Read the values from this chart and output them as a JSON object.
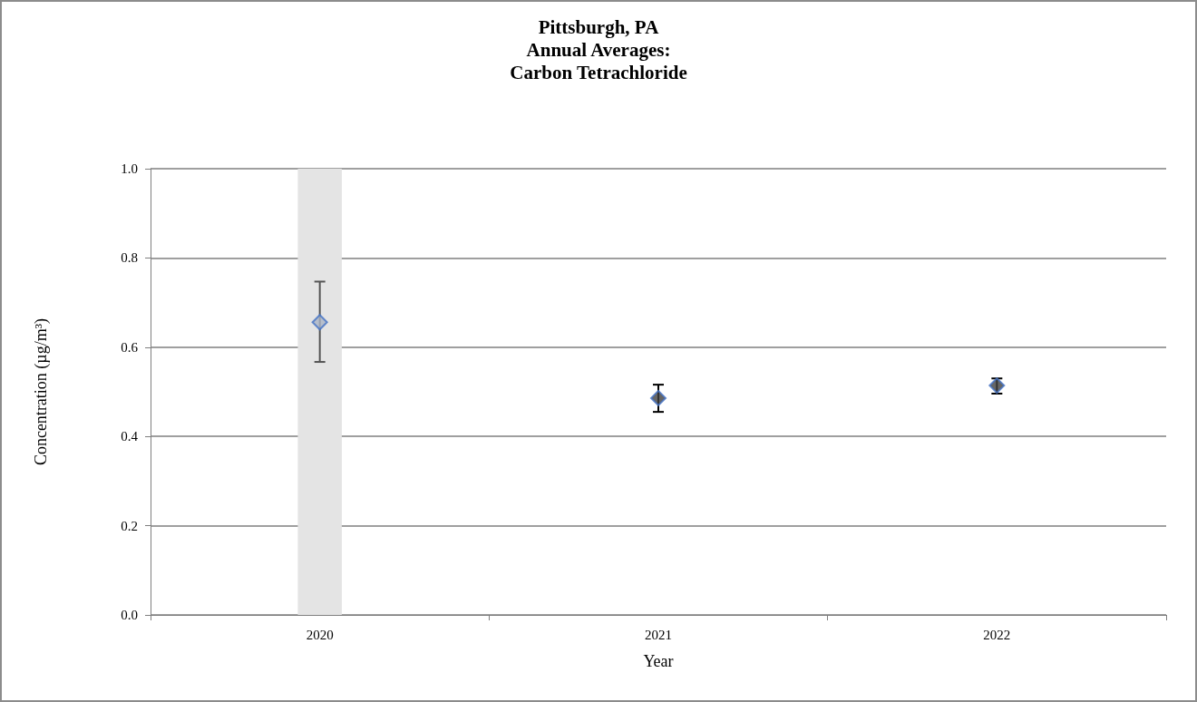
{
  "chart_data": {
    "type": "scatter",
    "title": "Pittsburgh, PA\nAnnual Averages:\nCarbon Tetrachloride",
    "xlabel": "Year",
    "ylabel": "Concentration (µg/m³)",
    "categories": [
      "2020",
      "2021",
      "2022"
    ],
    "values": [
      0.656,
      0.486,
      0.514
    ],
    "colors": [
      "#aab4c6",
      "#404040",
      "#404040"
    ],
    "errors": [
      [
        0.567,
        0.747
      ],
      [
        0.455,
        0.516
      ],
      [
        0.496,
        0.53
      ]
    ],
    "marker": "diamond",
    "ylim": [
      0,
      1
    ],
    "yticks": [
      {
        "value": 0,
        "label": "0.0"
      },
      {
        "value": 0.2,
        "label": "0.2"
      },
      {
        "value": 0.4,
        "label": "0.4"
      },
      {
        "value": 0.6,
        "label": "0.6"
      },
      {
        "value": 0.8,
        "label": "0.8"
      },
      {
        "value": 1,
        "label": "1.0"
      }
    ],
    "grid": "y",
    "bands": [
      {
        "axis": "x",
        "from": "2020",
        "to": "2020",
        "color": "#e4e4e4"
      }
    ]
  }
}
